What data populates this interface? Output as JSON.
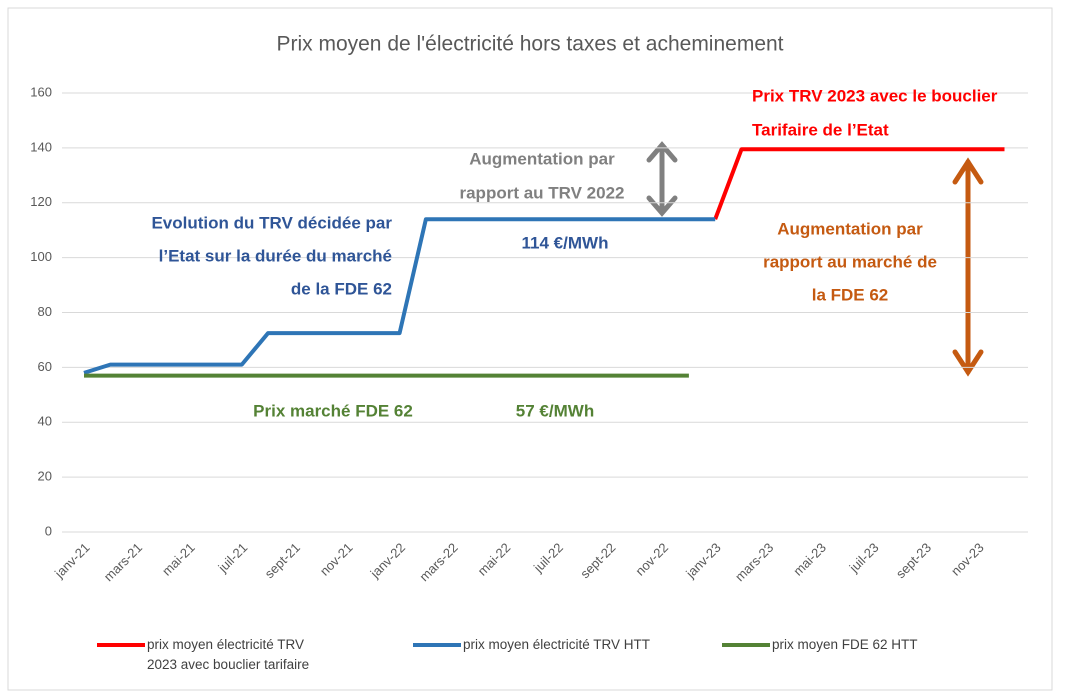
{
  "chart_data": {
    "type": "line",
    "title": "Prix moyen de l'électricité hors taxes et acheminement",
    "categories": [
      "janv-21",
      null,
      "mars-21",
      null,
      "mai-21",
      null,
      "juil-21",
      null,
      "sept-21",
      null,
      "nov-21",
      null,
      "janv-22",
      null,
      "mars-22",
      null,
      "mai-22",
      null,
      "juil-22",
      null,
      "sept-22",
      null,
      "nov-22",
      null,
      "janv-23",
      null,
      "mars-23",
      null,
      "mai-23",
      null,
      "juil-23",
      null,
      "sept-23",
      null,
      "nov-23",
      null
    ],
    "series": [
      {
        "name": "prix moyen électricité TRV 2023 avec bouclier tarifaire",
        "color": "#ff0000",
        "values": [
          null,
          null,
          null,
          null,
          null,
          null,
          null,
          null,
          null,
          null,
          null,
          null,
          null,
          null,
          null,
          null,
          null,
          null,
          null,
          null,
          null,
          null,
          null,
          null,
          114,
          139.5,
          139.5,
          139.5,
          139.5,
          139.5,
          139.5,
          139.5,
          139.5,
          139.5,
          139.5,
          139.5
        ]
      },
      {
        "name": "prix moyen électricité TRV HTT",
        "color": "#2e75b6",
        "values": [
          58,
          61,
          61,
          61,
          61,
          61,
          61,
          72.5,
          72.5,
          72.5,
          72.5,
          72.5,
          72.5,
          114,
          114,
          114,
          114,
          114,
          114,
          114,
          114,
          114,
          114,
          114,
          114,
          null,
          null,
          null,
          null,
          null,
          null,
          null,
          null,
          null,
          null,
          null
        ]
      },
      {
        "name": "prix moyen FDE 62 HTT",
        "color": "#548235",
        "values": [
          57,
          57,
          57,
          57,
          57,
          57,
          57,
          57,
          57,
          57,
          57,
          57,
          57,
          57,
          57,
          57,
          57,
          57,
          57,
          57,
          57,
          57,
          57,
          57,
          null,
          null,
          null,
          null,
          null,
          null,
          null,
          null,
          null,
          null,
          null,
          null
        ]
      }
    ],
    "ylim": [
      0,
      160
    ],
    "yticks": [
      0,
      20,
      40,
      60,
      80,
      100,
      120,
      140,
      160
    ],
    "grid": true,
    "legend": "bottom",
    "annotations": [
      {
        "lines": [
          "Prix TRV 2023 avec le bouclier",
          "Tarifaire de l’Etat"
        ],
        "color": "#ff0000"
      },
      {
        "lines": [
          "Augmentation par",
          "rapport au TRV 2022"
        ],
        "color": "#808080"
      },
      {
        "lines": [
          "Evolution du TRV décidée par",
          "l’Etat sur la durée du marché",
          "de la FDE 62"
        ],
        "color": "#2f5597"
      },
      {
        "lines": [
          "114 €/MWh"
        ],
        "color": "#2f5597"
      },
      {
        "lines": [
          "Augmentation par",
          "rapport au marché de",
          "la FDE 62"
        ],
        "color": "#c55a11"
      },
      {
        "lines": [
          "Prix marché FDE 62"
        ],
        "color": "#548235"
      },
      {
        "lines": [
          "57 €/MWh"
        ],
        "color": "#548235"
      }
    ]
  }
}
